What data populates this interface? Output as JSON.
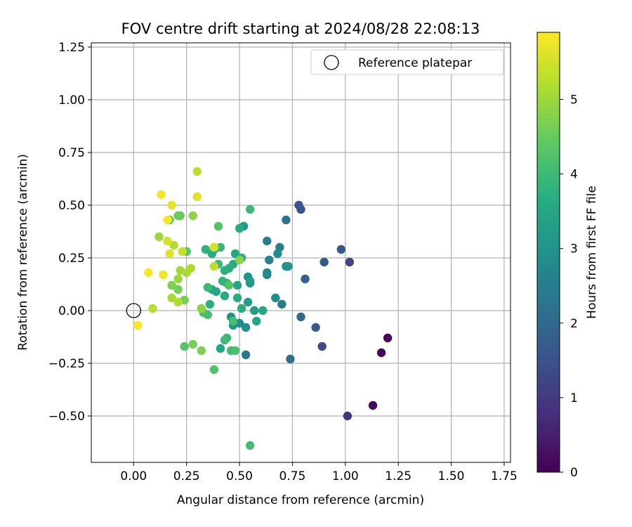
{
  "chart_data": {
    "type": "scatter",
    "title": "FOV centre drift starting at 2024/08/28 22:08:13",
    "xlabel": "Angular distance from reference (arcmin)",
    "ylabel": "Rotation from reference (arcmin)",
    "xlim": [
      -0.2,
      1.78
    ],
    "ylim": [
      -0.72,
      1.27
    ],
    "x_ticks": [
      "0.00",
      "0.25",
      "0.50",
      "0.75",
      "1.00",
      "1.25",
      "1.50",
      "1.75"
    ],
    "x_tick_values": [
      0,
      0.25,
      0.5,
      0.75,
      1.0,
      1.25,
      1.5,
      1.75
    ],
    "y_ticks": [
      "−0.50",
      "−0.25",
      "0.00",
      "0.25",
      "0.50",
      "0.75",
      "1.00",
      "1.25"
    ],
    "y_tick_values": [
      -0.5,
      -0.25,
      0,
      0.25,
      0.5,
      0.75,
      1.0,
      1.25
    ],
    "grid": true,
    "legend": {
      "position": "top-right",
      "label": "Reference platepar"
    },
    "reference_point": {
      "x": 0.0,
      "y": 0.0
    },
    "colorbar": {
      "label": "Hours from first FF file",
      "range": [
        0,
        5.9
      ],
      "ticks": [
        "0",
        "1",
        "2",
        "3",
        "4",
        "5"
      ],
      "tick_values": [
        0,
        1,
        2,
        3,
        4,
        5
      ],
      "colormap": "viridis"
    },
    "points": [
      {
        "x": 1.2,
        "y": -0.13,
        "h": 0.05
      },
      {
        "x": 1.17,
        "y": -0.2,
        "h": 0.1
      },
      {
        "x": 1.13,
        "y": -0.45,
        "h": 0.15
      },
      {
        "x": 1.01,
        "y": -0.5,
        "h": 0.9
      },
      {
        "x": 1.02,
        "y": 0.23,
        "h": 1.2
      },
      {
        "x": 0.89,
        "y": -0.17,
        "h": 1.3
      },
      {
        "x": 0.78,
        "y": 0.5,
        "h": 1.5
      },
      {
        "x": 0.79,
        "y": 0.48,
        "h": 1.55
      },
      {
        "x": 0.98,
        "y": 0.29,
        "h": 1.6
      },
      {
        "x": 0.9,
        "y": 0.23,
        "h": 1.65
      },
      {
        "x": 0.86,
        "y": -0.08,
        "h": 1.7
      },
      {
        "x": 0.81,
        "y": 0.15,
        "h": 1.8
      },
      {
        "x": 0.79,
        "y": -0.03,
        "h": 2.0
      },
      {
        "x": 0.74,
        "y": -0.23,
        "h": 2.1
      },
      {
        "x": 0.72,
        "y": 0.43,
        "h": 2.2
      },
      {
        "x": 0.53,
        "y": -0.21,
        "h": 2.3
      },
      {
        "x": 0.7,
        "y": 0.03,
        "h": 2.4
      },
      {
        "x": 0.69,
        "y": 0.3,
        "h": 2.5
      },
      {
        "x": 0.63,
        "y": 0.33,
        "h": 2.5
      },
      {
        "x": 0.64,
        "y": 0.24,
        "h": 2.6
      },
      {
        "x": 0.63,
        "y": 0.18,
        "h": 2.7
      },
      {
        "x": 0.63,
        "y": 0.17,
        "h": 2.75
      },
      {
        "x": 0.67,
        "y": 0.06,
        "h": 2.8
      },
      {
        "x": 0.68,
        "y": 0.27,
        "h": 2.85
      },
      {
        "x": 0.72,
        "y": 0.21,
        "h": 2.9
      },
      {
        "x": 0.73,
        "y": 0.21,
        "h": 3.0
      },
      {
        "x": 0.54,
        "y": 0.16,
        "h": 2.95
      },
      {
        "x": 0.53,
        "y": -0.08,
        "h": 2.9
      },
      {
        "x": 0.5,
        "y": -0.06,
        "h": 2.85
      },
      {
        "x": 0.46,
        "y": -0.03,
        "h": 3.0
      },
      {
        "x": 0.47,
        "y": -0.07,
        "h": 3.05
      },
      {
        "x": 0.52,
        "y": 0.4,
        "h": 3.1
      },
      {
        "x": 0.55,
        "y": 0.13,
        "h": 3.15
      },
      {
        "x": 0.55,
        "y": 0.14,
        "h": 3.2
      },
      {
        "x": 0.54,
        "y": 0.04,
        "h": 3.25
      },
      {
        "x": 0.57,
        "y": 0.0,
        "h": 3.3
      },
      {
        "x": 0.58,
        "y": -0.05,
        "h": 3.4
      },
      {
        "x": 0.61,
        "y": 0.0,
        "h": 3.5
      },
      {
        "x": 0.49,
        "y": 0.12,
        "h": 3.45
      },
      {
        "x": 0.48,
        "y": 0.27,
        "h": 3.5
      },
      {
        "x": 0.5,
        "y": 0.39,
        "h": 3.55
      },
      {
        "x": 0.51,
        "y": 0.25,
        "h": 3.6
      },
      {
        "x": 0.47,
        "y": 0.22,
        "h": 3.65
      },
      {
        "x": 0.45,
        "y": 0.2,
        "h": 3.7
      },
      {
        "x": 0.43,
        "y": 0.19,
        "h": 3.75
      },
      {
        "x": 0.44,
        "y": 0.13,
        "h": 3.8
      },
      {
        "x": 0.42,
        "y": 0.14,
        "h": 3.85
      },
      {
        "x": 0.4,
        "y": 0.22,
        "h": 3.9
      },
      {
        "x": 0.41,
        "y": 0.3,
        "h": 3.95
      },
      {
        "x": 0.37,
        "y": 0.27,
        "h": 3.6
      },
      {
        "x": 0.38,
        "y": 0.29,
        "h": 3.7
      },
      {
        "x": 0.34,
        "y": 0.29,
        "h": 3.8
      },
      {
        "x": 0.39,
        "y": 0.09,
        "h": 3.5
      },
      {
        "x": 0.37,
        "y": 0.1,
        "h": 3.55
      },
      {
        "x": 0.43,
        "y": 0.07,
        "h": 3.6
      },
      {
        "x": 0.49,
        "y": 0.06,
        "h": 3.65
      },
      {
        "x": 0.51,
        "y": 0.01,
        "h": 3.7
      },
      {
        "x": 0.36,
        "y": 0.03,
        "h": 3.75
      },
      {
        "x": 0.41,
        "y": -0.18,
        "h": 3.5
      },
      {
        "x": 0.44,
        "y": -0.13,
        "h": 3.9
      },
      {
        "x": 0.43,
        "y": -0.14,
        "h": 4.0
      },
      {
        "x": 0.47,
        "y": -0.05,
        "h": 4.1
      },
      {
        "x": 0.46,
        "y": -0.19,
        "h": 4.05
      },
      {
        "x": 0.48,
        "y": -0.19,
        "h": 4.15
      },
      {
        "x": 0.35,
        "y": 0.11,
        "h": 4.0
      },
      {
        "x": 0.35,
        "y": -0.02,
        "h": 4.1
      },
      {
        "x": 0.33,
        "y": -0.01,
        "h": 4.2
      },
      {
        "x": 0.24,
        "y": -0.17,
        "h": 4.3
      },
      {
        "x": 0.38,
        "y": -0.28,
        "h": 4.2
      },
      {
        "x": 0.55,
        "y": 0.48,
        "h": 4.0
      },
      {
        "x": 0.4,
        "y": 0.4,
        "h": 4.25
      },
      {
        "x": 0.55,
        "y": -0.64,
        "h": 4.1
      },
      {
        "x": 0.45,
        "y": 0.12,
        "h": 4.3
      },
      {
        "x": 0.25,
        "y": 0.28,
        "h": 4.35
      },
      {
        "x": 0.17,
        "y": 0.43,
        "h": 4.4
      },
      {
        "x": 0.21,
        "y": 0.45,
        "h": 4.5
      },
      {
        "x": 0.22,
        "y": 0.45,
        "h": 4.55
      },
      {
        "x": 0.21,
        "y": 0.1,
        "h": 4.6
      },
      {
        "x": 0.24,
        "y": 0.05,
        "h": 4.65
      },
      {
        "x": 0.18,
        "y": 0.12,
        "h": 4.7
      },
      {
        "x": 0.28,
        "y": -0.16,
        "h": 4.65
      },
      {
        "x": 0.32,
        "y": -0.19,
        "h": 4.7
      },
      {
        "x": 0.5,
        "y": 0.24,
        "h": 4.8
      },
      {
        "x": 0.32,
        "y": 0.01,
        "h": 4.85
      },
      {
        "x": 0.28,
        "y": 0.45,
        "h": 4.9
      },
      {
        "x": 0.12,
        "y": 0.35,
        "h": 5.0
      },
      {
        "x": 0.21,
        "y": 0.15,
        "h": 5.0
      },
      {
        "x": 0.22,
        "y": 0.19,
        "h": 5.05
      },
      {
        "x": 0.25,
        "y": 0.18,
        "h": 5.1
      },
      {
        "x": 0.27,
        "y": 0.2,
        "h": 5.15
      },
      {
        "x": 0.21,
        "y": 0.04,
        "h": 5.2
      },
      {
        "x": 0.18,
        "y": 0.06,
        "h": 5.1
      },
      {
        "x": 0.19,
        "y": 0.31,
        "h": 5.2
      },
      {
        "x": 0.3,
        "y": 0.66,
        "h": 5.3
      },
      {
        "x": 0.09,
        "y": 0.01,
        "h": 5.25
      },
      {
        "x": 0.38,
        "y": 0.21,
        "h": 5.3
      },
      {
        "x": 0.23,
        "y": 0.28,
        "h": 5.4
      },
      {
        "x": 0.38,
        "y": 0.3,
        "h": 5.5
      },
      {
        "x": 0.16,
        "y": 0.33,
        "h": 5.55
      },
      {
        "x": 0.17,
        "y": 0.27,
        "h": 5.6
      },
      {
        "x": 0.3,
        "y": 0.54,
        "h": 5.65
      },
      {
        "x": 0.18,
        "y": 0.5,
        "h": 5.7
      },
      {
        "x": 0.14,
        "y": 0.17,
        "h": 5.75
      },
      {
        "x": 0.07,
        "y": 0.18,
        "h": 5.8
      },
      {
        "x": 0.13,
        "y": 0.55,
        "h": 5.8
      },
      {
        "x": 0.16,
        "y": 0.43,
        "h": 5.85
      },
      {
        "x": 0.02,
        "y": -0.07,
        "h": 5.9
      }
    ]
  }
}
